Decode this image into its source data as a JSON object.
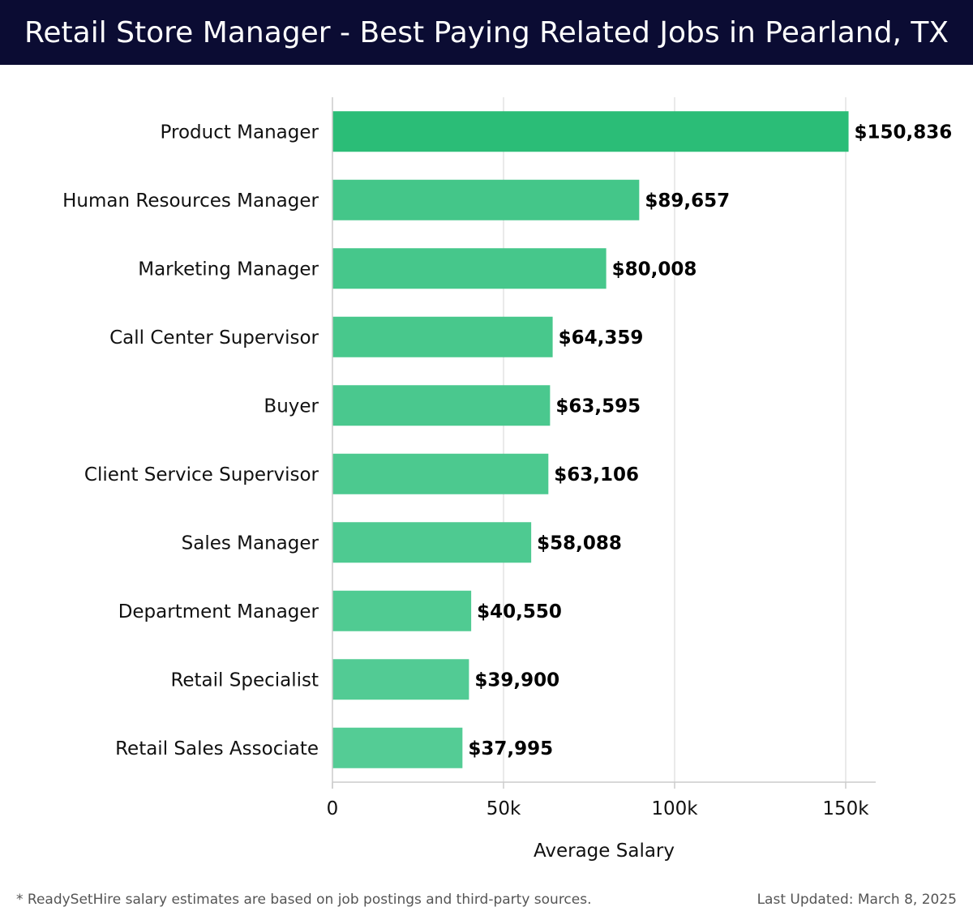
{
  "header": {
    "title": "Retail Store Manager - Best Paying Related Jobs in Pearland, TX"
  },
  "footer": {
    "note": "* ReadySetHire salary estimates are based on job postings and third-party sources.",
    "updated": "Last Updated: March 8, 2025"
  },
  "colors": {
    "header_bg": "#0b0c33",
    "bar_top": "#2bbd77",
    "bar_base": "#54cc95",
    "grid": "#e3e3e3"
  },
  "chart_data": {
    "type": "bar",
    "orientation": "horizontal",
    "title": "Retail Store Manager - Best Paying Related Jobs in Pearland, TX",
    "xlabel": "Average Salary",
    "ylabel": "",
    "xlim": [
      0,
      160000
    ],
    "grid": true,
    "categories": [
      "Product Manager",
      "Human Resources Manager",
      "Marketing Manager",
      "Call Center Supervisor",
      "Buyer",
      "Client Service Supervisor",
      "Sales Manager",
      "Department Manager",
      "Retail Specialist",
      "Retail Sales Associate"
    ],
    "values": [
      150836,
      89657,
      80008,
      64359,
      63595,
      63106,
      58088,
      40550,
      39900,
      37995
    ],
    "value_labels": [
      "$150,836",
      "$89,657",
      "$80,008",
      "$64,359",
      "$63,595",
      "$63,106",
      "$58,088",
      "$40,550",
      "$39,900",
      "$37,995"
    ],
    "ticks": [
      0,
      50000,
      100000,
      150000
    ],
    "tick_labels": [
      "0",
      "50k",
      "100k",
      "150k"
    ]
  }
}
